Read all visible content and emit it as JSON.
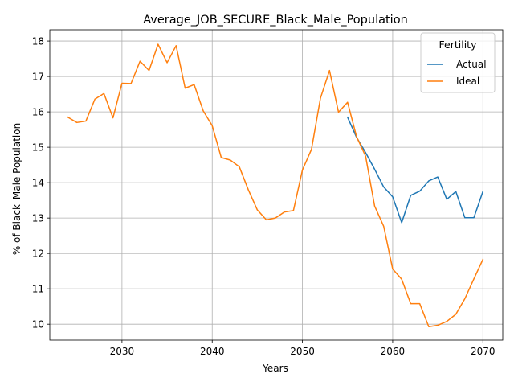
{
  "chart_data": {
    "type": "line",
    "title": "Average_JOB_SECURE_Black_Male_Population",
    "xlabel": "Years",
    "ylabel": "% of Black_Male Population",
    "xlim": [
      2022,
      2072.2
    ],
    "ylim": [
      9.55,
      18.32
    ],
    "xticks": [
      2030,
      2040,
      2050,
      2060,
      2070
    ],
    "yticks": [
      10,
      11,
      12,
      13,
      14,
      15,
      16,
      17,
      18
    ],
    "grid": true,
    "legend": {
      "title": "Fertility",
      "position": "top-right"
    },
    "series": [
      {
        "name": "Actual",
        "color": "#1f77b4",
        "x": [
          2055,
          2056,
          2057,
          2058,
          2059,
          2060,
          2061,
          2062,
          2063,
          2064,
          2065,
          2066,
          2067,
          2068,
          2069,
          2070
        ],
        "y": [
          15.85,
          15.28,
          14.85,
          14.38,
          13.88,
          13.6,
          12.87,
          13.64,
          13.76,
          14.05,
          14.16,
          13.53,
          13.75,
          13.01,
          13.01,
          13.75
        ]
      },
      {
        "name": "Ideal",
        "color": "#ff7f0e",
        "x": [
          2024,
          2025,
          2026,
          2027,
          2028,
          2029,
          2030,
          2031,
          2032,
          2033,
          2034,
          2035,
          2036,
          2037,
          2038,
          2039,
          2040,
          2041,
          2042,
          2043,
          2044,
          2045,
          2046,
          2047,
          2048,
          2049,
          2050,
          2051,
          2052,
          2053,
          2054,
          2055,
          2056,
          2057,
          2058,
          2059,
          2060,
          2061,
          2062,
          2063,
          2064,
          2065,
          2066,
          2067,
          2068,
          2069,
          2070
        ],
        "y": [
          15.85,
          15.7,
          15.74,
          16.36,
          16.52,
          15.83,
          16.81,
          16.8,
          17.43,
          17.17,
          17.91,
          17.39,
          17.87,
          16.67,
          16.77,
          16.03,
          15.61,
          14.71,
          14.64,
          14.45,
          13.8,
          13.23,
          12.95,
          13.0,
          13.17,
          13.21,
          14.36,
          14.94,
          16.39,
          17.17,
          15.99,
          16.27,
          15.3,
          14.75,
          13.34,
          12.77,
          11.56,
          11.27,
          10.58,
          10.58,
          9.93,
          9.97,
          10.08,
          10.28,
          10.72,
          11.28,
          11.83
        ]
      }
    ]
  }
}
